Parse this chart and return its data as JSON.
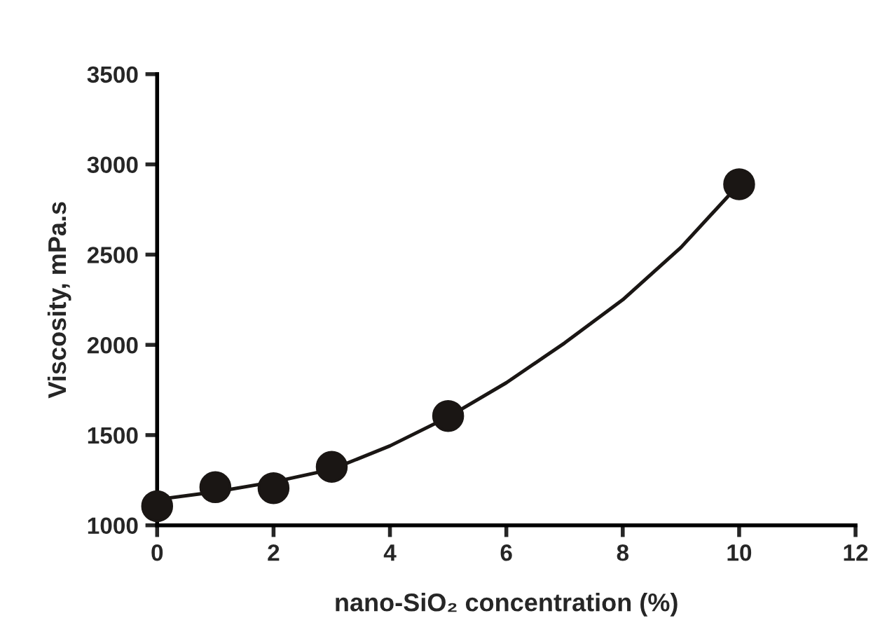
{
  "chart_data": {
    "type": "scatter",
    "xlabel": "nano-SiO₂ concentration (%)",
    "ylabel": "Viscosity, mPa.s",
    "xlim": [
      0,
      12
    ],
    "xticks": [
      0,
      2,
      4,
      6,
      8,
      10,
      12
    ],
    "ylim": [
      1000,
      3500
    ],
    "yticks": [
      1000,
      1500,
      2000,
      2500,
      3000,
      3500
    ],
    "grid": false,
    "legend": false,
    "series": [
      {
        "marker": "circle",
        "color": "#1a1614",
        "x": [
          0,
          1,
          2,
          3,
          5,
          10
        ],
        "values": [
          1106,
          1211,
          1206,
          1324,
          1606,
          2890
        ]
      },
      {
        "type": "line",
        "marker": "none",
        "color": "#1a1614",
        "line_style": "solid",
        "x": [
          0,
          1,
          2,
          3,
          4,
          5,
          6,
          7,
          8,
          9,
          10
        ],
        "values": [
          1143,
          1185,
          1240,
          1310,
          1440,
          1600,
          1790,
          2010,
          2250,
          2540,
          2890
        ]
      }
    ]
  }
}
